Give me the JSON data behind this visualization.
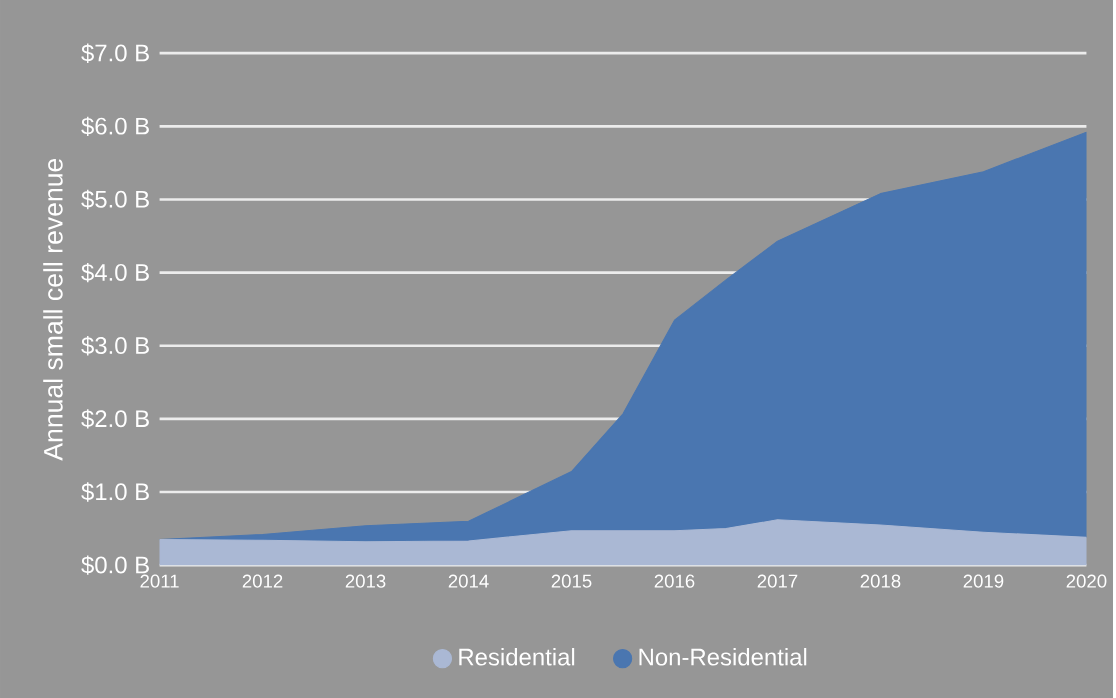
{
  "chart_data": {
    "type": "area",
    "stacked": true,
    "ylabel": "Annual small cell revenue",
    "x": [
      2011,
      2012,
      2013,
      2014,
      2015,
      2015.5,
      2016,
      2016.5,
      2017,
      2018,
      2019,
      2020
    ],
    "series": [
      {
        "name": "Residential",
        "color": "#aab8d4",
        "values": [
          0.35,
          0.34,
          0.32,
          0.33,
          0.47,
          0.47,
          0.47,
          0.5,
          0.62,
          0.55,
          0.45,
          0.38
        ]
      },
      {
        "name": "Non-Residential",
        "color": "#4a76b0",
        "values": [
          0,
          0.08,
          0.22,
          0.27,
          0.81,
          1.6,
          2.88,
          3.4,
          3.81,
          4.53,
          4.93,
          5.54
        ]
      }
    ],
    "xlim": [
      2011,
      2020
    ],
    "xticks": [
      2011,
      2012,
      2013,
      2014,
      2015,
      2016,
      2017,
      2018,
      2019,
      2020
    ],
    "ylim": [
      0,
      7
    ],
    "yticks": [
      {
        "value": 0,
        "label": "$0.0 B"
      },
      {
        "value": 1,
        "label": "$1.0 B"
      },
      {
        "value": 2,
        "label": "$2.0 B"
      },
      {
        "value": 3,
        "label": "$3.0 B"
      },
      {
        "value": 4,
        "label": "$4.0 B"
      },
      {
        "value": 5,
        "label": "$5.0 B"
      },
      {
        "value": 6,
        "label": "$6.0 B"
      },
      {
        "value": 7,
        "label": "$7.0 B"
      }
    ],
    "grid": "y",
    "legend": "bottom"
  }
}
